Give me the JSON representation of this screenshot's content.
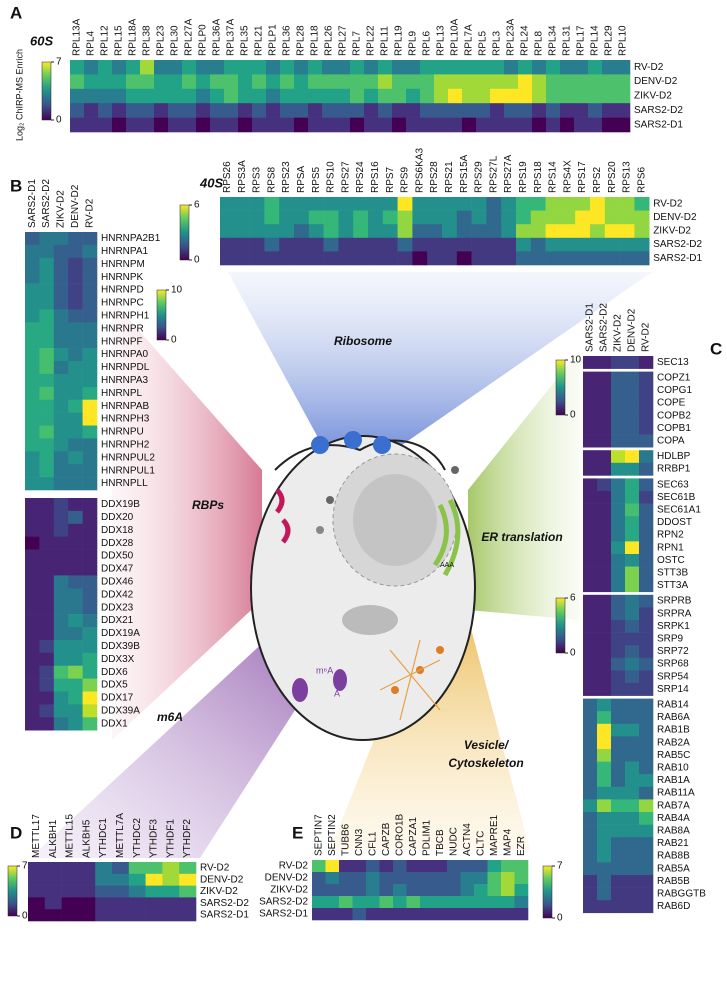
{
  "chart_data": [
    {
      "type": "heatmap",
      "panel": "A",
      "title": "60S",
      "colorbar_label": "Log₂ ChIRP-MS Enrich",
      "colormap": "viridis",
      "columns": [
        "RPL13A",
        "RPL4",
        "RPL12",
        "RPL15",
        "RPL18A",
        "RPL38",
        "RPL23",
        "RPL30",
        "RPL27A",
        "RPLP0",
        "RPL36A",
        "RPL37A",
        "RPL35",
        "RPL21",
        "RPLP1",
        "RPL36",
        "RPL28",
        "RPL18",
        "RPL26",
        "RPL27",
        "RPL7",
        "RPL22",
        "RPL11",
        "RPL19",
        "RPL9",
        "RPL6",
        "RPL13",
        "RPL10A",
        "RPL7A",
        "RPL5",
        "RPL3",
        "RPL23A",
        "RPL24",
        "RPL8",
        "RPL34",
        "RPL31",
        "RPL17",
        "RPL14",
        "RPL29",
        "RPL10"
      ],
      "rows": [
        "RV-D2",
        "DENV-D2",
        "ZIKV-D2",
        "SARS2-D2",
        "SARS2-D1"
      ],
      "values": [
        [
          4,
          3,
          4,
          3,
          4,
          6,
          3,
          3,
          4,
          3,
          3,
          4,
          4,
          4,
          3,
          4,
          3,
          4,
          3,
          3,
          4,
          3,
          4,
          3,
          3,
          4,
          4,
          4,
          4,
          4,
          4,
          3,
          4,
          3,
          4,
          3,
          3,
          4,
          3,
          3
        ],
        [
          5,
          4,
          4,
          4,
          5,
          5,
          4,
          4,
          5,
          4,
          5,
          5,
          4,
          5,
          4,
          5,
          4,
          5,
          5,
          5,
          5,
          5,
          6,
          5,
          5,
          5,
          6,
          6,
          6,
          6,
          6,
          6,
          7,
          6,
          5,
          5,
          5,
          5,
          5,
          5
        ],
        [
          3,
          3,
          3,
          3,
          4,
          4,
          4,
          4,
          4,
          3,
          4,
          5,
          4,
          4,
          3,
          4,
          4,
          4,
          4,
          4,
          5,
          4,
          5,
          5,
          4,
          5,
          6,
          7,
          6,
          6,
          7,
          7,
          7,
          6,
          5,
          5,
          5,
          5,
          5,
          5
        ],
        [
          2,
          1,
          2,
          1,
          2,
          2,
          1,
          2,
          2,
          1,
          2,
          2,
          1,
          2,
          1,
          2,
          2,
          1,
          2,
          2,
          2,
          1,
          2,
          1,
          1,
          2,
          2,
          2,
          2,
          2,
          1,
          2,
          2,
          1,
          2,
          1,
          1,
          2,
          1,
          1
        ],
        [
          1,
          1,
          1,
          0,
          1,
          1,
          0,
          1,
          1,
          0,
          1,
          1,
          0,
          1,
          1,
          1,
          0,
          1,
          1,
          1,
          0,
          1,
          1,
          0,
          1,
          1,
          1,
          1,
          0,
          1,
          1,
          1,
          1,
          0,
          1,
          0,
          1,
          1,
          0,
          0
        ]
      ],
      "scales": [
        {
          "zlim": [
            0,
            7
          ],
          "zticks": [
            0,
            7
          ]
        }
      ]
    },
    {
      "type": "heatmap",
      "title": "40S",
      "colormap": "viridis",
      "columns": [
        "RPS26",
        "RPS3A",
        "RPS3",
        "RPS8",
        "RPS23",
        "RPSA",
        "RPS5",
        "RPS10",
        "RPS27",
        "RPS24",
        "RPS16",
        "RPS7",
        "RPS9",
        "RPS6KA3",
        "RPS28",
        "RPS21",
        "RPS15A",
        "RPS29",
        "RPS27L",
        "RPS27A",
        "RPS19",
        "RPS18",
        "RPS14",
        "RPS4X",
        "RPS17",
        "RPS2",
        "RPS20",
        "RPS13",
        "RPS6"
      ],
      "rows": [
        "RV-D2",
        "DENV-D2",
        "ZIKV-D2",
        "SARS2-D2",
        "SARS2-D1"
      ],
      "values": [
        [
          3,
          3,
          3,
          4,
          3,
          3,
          3,
          3,
          3,
          3,
          3,
          3,
          6,
          3,
          3,
          3,
          3,
          3,
          2,
          3,
          4,
          4,
          5,
          5,
          5,
          6,
          5,
          5,
          4
        ],
        [
          3,
          3,
          3,
          4,
          3,
          3,
          4,
          4,
          3,
          4,
          3,
          4,
          5,
          3,
          3,
          3,
          2,
          3,
          2,
          3,
          4,
          5,
          5,
          5,
          6,
          6,
          5,
          5,
          5
        ],
        [
          3,
          3,
          3,
          3,
          3,
          2,
          3,
          4,
          3,
          4,
          3,
          3,
          5,
          2,
          2,
          3,
          2,
          2,
          2,
          3,
          5,
          5,
          6,
          6,
          6,
          5,
          6,
          6,
          5
        ],
        [
          1,
          1,
          1,
          2,
          1,
          1,
          1,
          2,
          1,
          1,
          1,
          1,
          2,
          1,
          1,
          1,
          1,
          1,
          1,
          1,
          3,
          2,
          3,
          3,
          3,
          3,
          3,
          3,
          3
        ],
        [
          1,
          1,
          1,
          1,
          1,
          1,
          1,
          1,
          1,
          1,
          1,
          1,
          1,
          0,
          1,
          1,
          0,
          1,
          1,
          1,
          2,
          2,
          2,
          2,
          2,
          2,
          2,
          2,
          2
        ]
      ],
      "scales": [
        {
          "zlim": [
            0,
            6
          ],
          "zticks": [
            0,
            6
          ]
        }
      ]
    },
    {
      "type": "heatmap",
      "panel": "B",
      "colormap": "viridis",
      "columns": [
        "SARS2-D1",
        "SARS2-D2",
        "ZIKV-D2",
        "DENV-D2",
        "RV-D2"
      ],
      "rows": [
        "HNRNPA2B1",
        "HNRNPA1",
        "HNRNPM",
        "HNRNPK",
        "HNRNPD",
        "HNRNPC",
        "HNRNPH1",
        "HNRNPR",
        "HNRNPF",
        "HNRNPA0",
        "HNRNPDL",
        "HNRNPA3",
        "HNRNPL",
        "HNRNPAB",
        "HNRNPH3",
        "HNRNPU",
        "HNRNPH2",
        "HNRNPUL2",
        "HNRNPUL1",
        "HNRNPLL",
        "DDX19B",
        "DDX20",
        "DDX18",
        "DDX28",
        "DDX50",
        "DDX47",
        "DDX46",
        "DDX42",
        "DDX23",
        "DDX21",
        "DDX19A",
        "DDX39B",
        "DDX3X",
        "DDX6",
        "DDX5",
        "DDX17",
        "DDX39A",
        "DDX1"
      ],
      "values": [
        [
          3,
          4,
          4,
          3,
          3
        ],
        [
          4,
          4,
          3,
          3,
          4
        ],
        [
          4,
          5,
          3,
          2,
          3
        ],
        [
          4,
          5,
          3,
          2,
          3
        ],
        [
          5,
          5,
          3,
          2,
          3
        ],
        [
          5,
          5,
          3,
          2,
          3
        ],
        [
          5,
          6,
          4,
          3,
          3
        ],
        [
          6,
          6,
          4,
          4,
          4
        ],
        [
          6,
          6,
          4,
          4,
          4
        ],
        [
          6,
          7,
          5,
          4,
          5
        ],
        [
          6,
          7,
          4,
          5,
          5
        ],
        [
          6,
          6,
          5,
          5,
          5
        ],
        [
          6,
          7,
          5,
          5,
          6
        ],
        [
          6,
          6,
          5,
          6,
          10
        ],
        [
          6,
          6,
          5,
          5,
          10
        ],
        [
          6,
          7,
          5,
          5,
          6
        ],
        [
          6,
          6,
          5,
          4,
          4
        ],
        [
          5,
          6,
          4,
          5,
          4
        ],
        [
          5,
          6,
          4,
          4,
          4
        ],
        [
          5,
          5,
          4,
          4,
          4
        ],
        [
          1,
          1,
          2,
          1,
          1
        ],
        [
          1,
          1,
          2,
          3,
          1
        ],
        [
          1,
          1,
          2,
          1,
          1
        ],
        [
          0,
          1,
          1,
          1,
          1
        ],
        [
          1,
          1,
          1,
          1,
          1
        ],
        [
          1,
          1,
          1,
          1,
          1
        ],
        [
          1,
          1,
          4,
          3,
          3
        ],
        [
          1,
          1,
          4,
          4,
          3
        ],
        [
          1,
          1,
          4,
          4,
          3
        ],
        [
          1,
          1,
          4,
          5,
          4
        ],
        [
          1,
          1,
          4,
          4,
          5
        ],
        [
          1,
          2,
          5,
          5,
          5
        ],
        [
          1,
          1,
          5,
          5,
          6
        ],
        [
          1,
          2,
          7,
          8,
          6
        ],
        [
          1,
          2,
          6,
          6,
          8
        ],
        [
          1,
          1,
          5,
          6,
          10
        ],
        [
          1,
          2,
          5,
          5,
          9
        ],
        [
          1,
          1,
          4,
          5,
          7
        ]
      ],
      "blocks": [
        20,
        18
      ],
      "scales": [
        {
          "zlim": [
            0,
            10
          ],
          "zticks": [
            0,
            10
          ]
        }
      ]
    },
    {
      "type": "heatmap",
      "panel": "C",
      "colormap": "viridis",
      "columns": [
        "SARS2-D1",
        "SARS2-D2",
        "ZIKV-D2",
        "DENV-D2",
        "RV-D2"
      ],
      "rows": [
        "SEC13",
        "COPZ1",
        "COPG1",
        "COPE",
        "COPB2",
        "COPB1",
        "COPA",
        "HDLBP",
        "RRBP1",
        "SEC63",
        "SEC61B",
        "SEC61A1",
        "DDOST",
        "RPN2",
        "RPN1",
        "OSTC",
        "STT3B",
        "STT3A",
        "SRPRB",
        "SRPRA",
        "SRPK1",
        "SRP9",
        "SRP72",
        "SRP68",
        "SRP54",
        "SRP14",
        "RAB14",
        "RAB6A",
        "RAB1B",
        "RAB2A",
        "RAB5C",
        "RAB10",
        "RAB1A",
        "RAB11A",
        "RAB7A",
        "RAB4A",
        "RAB8A",
        "RAB21",
        "RAB8B",
        "RAB5A",
        "RAB5B",
        "RABGGTB",
        "RAB6D"
      ],
      "values": [
        [
          1,
          1,
          2,
          2,
          1
        ],
        [
          1,
          1,
          3,
          3,
          2
        ],
        [
          1,
          1,
          3,
          3,
          2
        ],
        [
          1,
          1,
          3,
          3,
          2
        ],
        [
          1,
          1,
          3,
          3,
          2
        ],
        [
          1,
          1,
          3,
          3,
          2
        ],
        [
          1,
          1,
          3,
          3,
          3
        ],
        [
          1,
          1,
          9,
          10,
          4
        ],
        [
          1,
          1,
          5,
          5,
          3
        ],
        [
          1,
          2,
          4,
          6,
          3
        ],
        [
          1,
          1,
          4,
          6,
          2
        ],
        [
          1,
          1,
          4,
          7,
          3
        ],
        [
          1,
          1,
          4,
          6,
          3
        ],
        [
          1,
          1,
          4,
          6,
          3
        ],
        [
          1,
          1,
          5,
          10,
          3
        ],
        [
          1,
          1,
          4,
          5,
          3
        ],
        [
          1,
          1,
          4,
          8,
          3
        ],
        [
          1,
          1,
          4,
          8,
          3
        ],
        [
          1,
          1,
          3,
          4,
          3
        ],
        [
          1,
          1,
          3,
          4,
          2
        ],
        [
          1,
          1,
          2,
          3,
          2
        ],
        [
          1,
          1,
          2,
          2,
          2
        ],
        [
          1,
          1,
          2,
          3,
          2
        ],
        [
          1,
          1,
          3,
          4,
          3
        ],
        [
          1,
          1,
          2,
          3,
          2
        ],
        [
          1,
          1,
          2,
          2,
          2
        ],
        [
          2,
          3,
          2,
          2,
          2
        ],
        [
          2,
          4,
          2,
          2,
          2
        ],
        [
          2,
          6,
          3,
          3,
          2
        ],
        [
          2,
          6,
          2,
          2,
          2
        ],
        [
          2,
          5,
          2,
          2,
          2
        ],
        [
          2,
          4,
          2,
          3,
          2
        ],
        [
          2,
          4,
          2,
          3,
          3
        ],
        [
          2,
          3,
          3,
          3,
          2
        ],
        [
          3,
          5,
          4,
          4,
          5
        ],
        [
          2,
          3,
          3,
          3,
          4
        ],
        [
          2,
          3,
          3,
          3,
          3
        ],
        [
          2,
          3,
          2,
          2,
          2
        ],
        [
          2,
          3,
          2,
          2,
          2
        ],
        [
          2,
          2,
          2,
          2,
          2
        ],
        [
          1,
          2,
          1,
          1,
          1
        ],
        [
          1,
          2,
          1,
          1,
          1
        ],
        [
          1,
          1,
          1,
          1,
          1
        ]
      ],
      "blocks": [
        1,
        6,
        2,
        9,
        8,
        17
      ],
      "block_scales": [
        0,
        0,
        0,
        0,
        0,
        1
      ],
      "scales": [
        {
          "zlim": [
            0,
            10
          ],
          "zticks": [
            0,
            10
          ]
        },
        {
          "zlim": [
            0,
            6
          ],
          "zticks": [
            0,
            6
          ]
        }
      ]
    },
    {
      "type": "heatmap",
      "panel": "D",
      "colormap": "viridis",
      "columns": [
        "METTL17",
        "ALKBH1",
        "METTL15",
        "ALKBH5",
        "YTHDC1",
        "METTL7A",
        "YTHDC2",
        "YTHDF3",
        "YTHDF1",
        "YTHDF2"
      ],
      "rows": [
        "RV-D2",
        "DENV-D2",
        "ZIKV-D2",
        "SARS2-D2",
        "SARS2-D1"
      ],
      "values": [
        [
          1,
          1,
          1,
          1,
          3,
          2,
          5,
          5,
          6,
          5
        ],
        [
          1,
          1,
          1,
          1,
          3,
          3,
          4,
          7,
          6,
          7
        ],
        [
          1,
          1,
          1,
          1,
          2,
          2,
          3,
          4,
          4,
          5
        ],
        [
          0,
          1,
          0,
          0,
          1,
          1,
          1,
          1,
          1,
          1
        ],
        [
          0,
          0,
          0,
          0,
          1,
          1,
          1,
          1,
          1,
          1
        ]
      ],
      "scales": [
        {
          "zlim": [
            0,
            7
          ],
          "zticks": [
            0,
            7
          ]
        }
      ]
    },
    {
      "type": "heatmap",
      "panel": "E",
      "colormap": "viridis",
      "columns": [
        "SEPTIN7",
        "SEPTIN2",
        "TUBB6",
        "CNN3",
        "CFL1",
        "CAPZB",
        "CORO1B",
        "CAPZA1",
        "PDLIM1",
        "TBCB",
        "NUDC",
        "ACTN4",
        "CLTC",
        "MAPRE1",
        "MAP4",
        "EZR"
      ],
      "rows": [
        "RV-D2",
        "DENV-D2",
        "ZIKV-D2",
        "SARS2-D2",
        "SARS2-D1"
      ],
      "values": [
        [
          5,
          7,
          1,
          1,
          2,
          1,
          2,
          1,
          1,
          1,
          2,
          2,
          2,
          4,
          5,
          5
        ],
        [
          2,
          3,
          2,
          2,
          3,
          2,
          2,
          2,
          2,
          2,
          2,
          3,
          3,
          5,
          6,
          5
        ],
        [
          2,
          2,
          2,
          2,
          3,
          2,
          3,
          2,
          2,
          2,
          2,
          3,
          4,
          5,
          6,
          4
        ],
        [
          4,
          4,
          5,
          4,
          4,
          5,
          4,
          5,
          4,
          4,
          4,
          4,
          4,
          4,
          4,
          3
        ],
        [
          1,
          1,
          1,
          2,
          1,
          1,
          1,
          1,
          1,
          1,
          1,
          1,
          1,
          1,
          1,
          1
        ]
      ],
      "scales": [
        {
          "zlim": [
            0,
            7
          ],
          "zticks": [
            0,
            7
          ]
        }
      ]
    }
  ],
  "labels": {
    "ribosome": "Ribosome",
    "rbps": "RBPs",
    "er": "ER translation",
    "m6a": "m6A",
    "vesicle": [
      "Vesicle/",
      "Cytoskeleton"
    ],
    "cell": {
      "aaa": "AAA",
      "m6a": "m⁶A",
      "a": "A"
    }
  }
}
